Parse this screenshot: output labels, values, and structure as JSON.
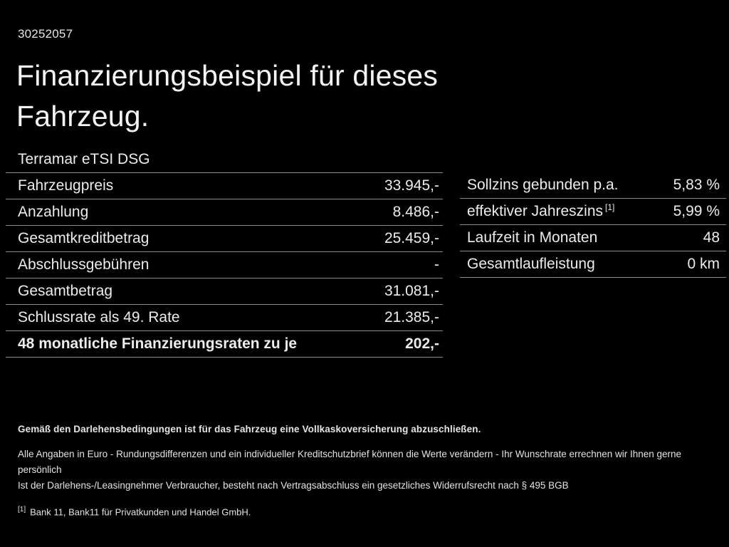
{
  "header": {
    "doc_number": "30252057",
    "title": "Finanzierungsbeispiel für dieses Fahrzeug."
  },
  "model": "Terramar eTSI DSG",
  "finance_table": {
    "rows": [
      {
        "label": "Fahrzeugpreis",
        "value": "33.945,-"
      },
      {
        "label": "Anzahlung",
        "value": "8.486,-"
      },
      {
        "label": "Gesamtkreditbetrag",
        "value": "25.459,-"
      },
      {
        "label": "Abschlussgebühren",
        "value": "-"
      },
      {
        "label": "Gesamtbetrag",
        "value": "31.081,-"
      },
      {
        "label": "Schlussrate als 49. Rate",
        "value": "21.385,-"
      },
      {
        "label": "48 monatliche Finanzierungsraten zu je",
        "value": "202,-"
      }
    ]
  },
  "conditions_table": {
    "rows": [
      {
        "label": "Sollzins gebunden p.a.",
        "sup": "",
        "value": "5,83 %"
      },
      {
        "label": "effektiver Jahreszins",
        "sup": "[1]",
        "value": "5,99 %"
      },
      {
        "label": "Laufzeit in Monaten",
        "sup": "",
        "value": "48"
      },
      {
        "label": "Gesamtlaufleistung",
        "sup": "",
        "value": "0 km"
      }
    ]
  },
  "footer": {
    "insurance_note": "Gemäß den Darlehensbedingungen ist für das Fahrzeug eine Vollkaskoversicherung abzuschließen.",
    "disclaimer_line1": "Alle Angaben in Euro - Rundungsdifferenzen und ein individueller Kreditschutzbrief können die Werte verändern - Ihr Wunschrate errechnen wir Ihnen gerne persönlich",
    "disclaimer_line2": "Ist der Darlehens-/Leasingnehmer Verbraucher, besteht nach Vertragsabschluss ein gesetzliches Widerrufsrecht nach § 495 BGB",
    "footnote_marker": "[1]",
    "footnote_text": "Bank 11, Bank11 für Privatkunden und Handel GmbH."
  },
  "colors": {
    "background": "#000000",
    "text": "#ececec",
    "divider": "#8c8c8c"
  }
}
